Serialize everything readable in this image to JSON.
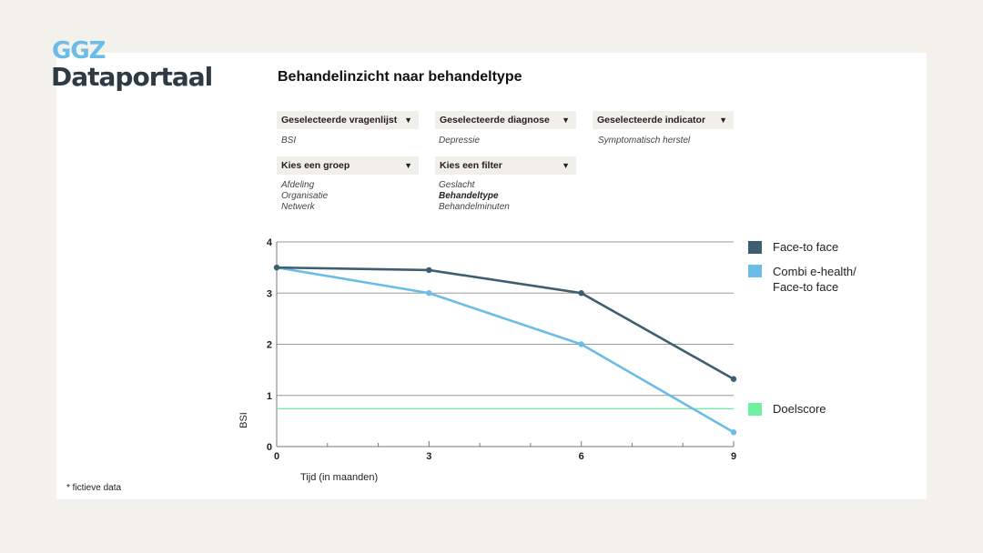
{
  "logo": {
    "line1": "GGZ",
    "line2": "Dataportaal"
  },
  "title": "Behandelinzicht naar behandeltype",
  "dropdowns": [
    {
      "label": "Geselecteerde vragenlijst",
      "values": [
        "BSI"
      ]
    },
    {
      "label": "Geselecteerde diagnose",
      "values": [
        "Depressie"
      ]
    },
    {
      "label": "Geselecteerde indicator",
      "values": [
        "Symptomatisch herstel"
      ]
    },
    {
      "label": "Kies een groep",
      "values": [
        "Afdeling",
        "Organisatie",
        "Netwerk"
      ]
    },
    {
      "label": "Kies een filter",
      "values": [
        "Geslacht",
        "Behandeltype",
        "Behandelminuten"
      ],
      "selected": "Behandeltype"
    }
  ],
  "arrow": "▼",
  "footnote": "* fictieve data",
  "chart_data": {
    "type": "line",
    "xlabel": "Tijd (in maanden)",
    "ylabel": "BSI",
    "x": [
      0,
      3,
      6,
      9
    ],
    "xticks": [
      "0",
      "3",
      "6",
      "9"
    ],
    "yticks": [
      "0",
      "1",
      "2",
      "3",
      "4"
    ],
    "xlim": [
      0,
      9
    ],
    "ylim": [
      0,
      4
    ],
    "grid": true,
    "series": [
      {
        "name": "Face-to face",
        "color": "#3d5f70",
        "values": [
          3.5,
          3.45,
          3.0,
          1.32
        ]
      },
      {
        "name": "Combi e-health/ Face-to face",
        "name_lines": [
          "Combi e-health/",
          "Face-to face"
        ],
        "color": "#6bbce6",
        "values": [
          3.5,
          3.0,
          2.0,
          0.28
        ]
      }
    ],
    "target": {
      "name": "Doelscore",
      "value": 0.74,
      "color": "#6ef0a0"
    },
    "legend_position": "right"
  }
}
